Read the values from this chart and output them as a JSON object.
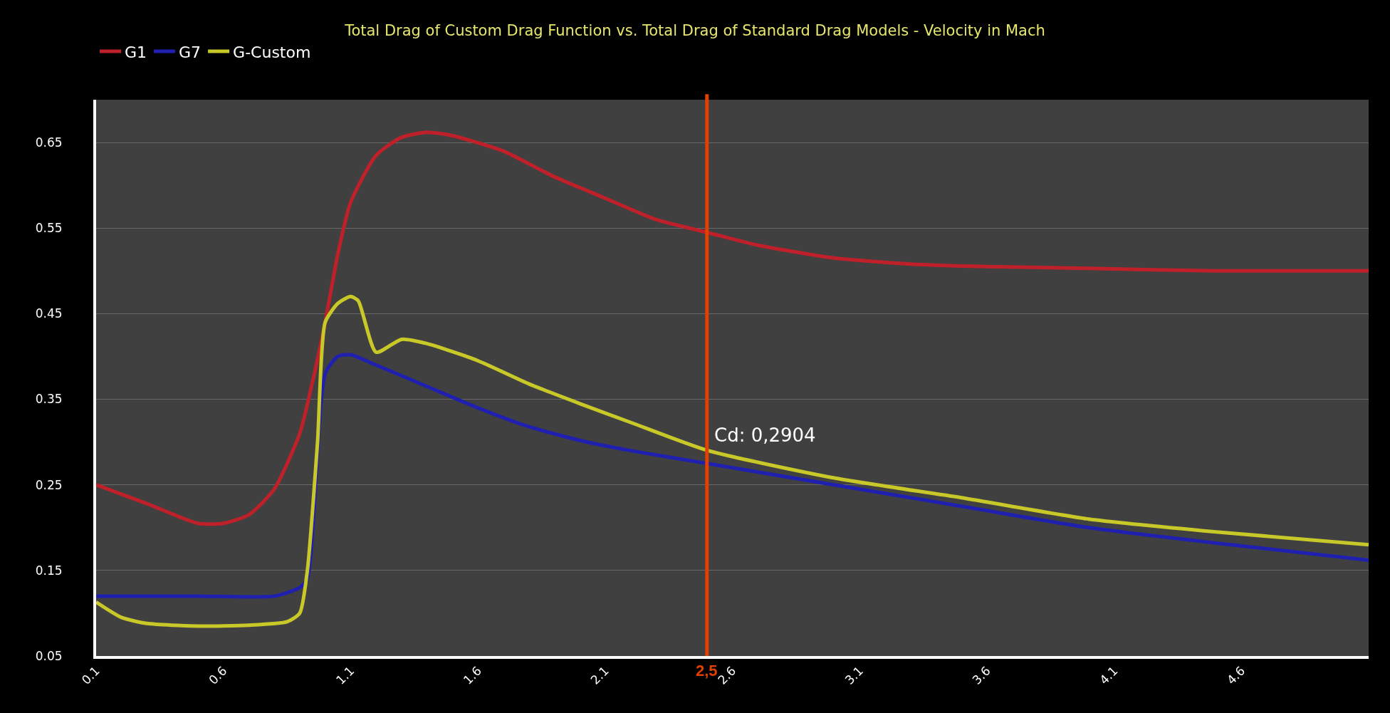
{
  "chart_data": {
    "type": "line",
    "title": "Total Drag of Custom Drag Function vs. Total Drag of Standard Drag Models - Velocity in Mach",
    "xlim": [
      0.1,
      5.1
    ],
    "xticks": [
      0.1,
      0.6,
      1.1,
      1.6,
      2.1,
      2.6,
      3.1,
      3.6,
      4.1,
      4.6
    ],
    "ylim": [
      0.05,
      0.7
    ],
    "yticks": [
      0.05,
      0.15,
      0.25,
      0.35,
      0.45,
      0.55,
      0.65
    ],
    "grid": "y",
    "legend": "top left",
    "marker": "none",
    "line_style": "solid",
    "series": [
      {
        "name": "G1",
        "color": "#c0202a",
        "x": [
          0.1,
          0.3,
          0.5,
          0.6,
          0.7,
          0.8,
          0.9,
          0.95,
          1.0,
          1.05,
          1.1,
          1.2,
          1.3,
          1.4,
          1.5,
          1.7,
          1.9,
          2.1,
          2.3,
          2.5,
          2.7,
          3.0,
          3.3,
          3.6,
          4.0,
          4.5,
          5.1
        ],
        "values": [
          0.25,
          0.228,
          0.205,
          0.205,
          0.215,
          0.245,
          0.31,
          0.37,
          0.44,
          0.52,
          0.58,
          0.635,
          0.656,
          0.662,
          0.658,
          0.64,
          0.61,
          0.585,
          0.56,
          0.545,
          0.53,
          0.515,
          0.508,
          0.505,
          0.503,
          0.5,
          0.5
        ]
      },
      {
        "name": "G7",
        "color": "#2020b0",
        "x": [
          0.1,
          0.5,
          0.8,
          0.9,
          0.93,
          1.0,
          1.05,
          1.1,
          1.2,
          1.4,
          1.6,
          1.8,
          2.0,
          2.2,
          2.5,
          3.0,
          3.5,
          4.0,
          4.5,
          5.1
        ],
        "values": [
          0.12,
          0.12,
          0.12,
          0.13,
          0.14,
          0.38,
          0.4,
          0.402,
          0.39,
          0.365,
          0.34,
          0.318,
          0.302,
          0.29,
          0.275,
          0.25,
          0.225,
          0.2,
          0.182,
          0.162
        ]
      },
      {
        "name": "G-Custom",
        "color": "#c8c828",
        "x": [
          0.1,
          0.2,
          0.3,
          0.5,
          0.7,
          0.85,
          0.9,
          0.93,
          0.97,
          1.0,
          1.05,
          1.1,
          1.13,
          1.2,
          1.3,
          1.4,
          1.6,
          1.8,
          2.0,
          2.2,
          2.5,
          3.0,
          3.5,
          4.0,
          4.5,
          5.1
        ],
        "values": [
          0.113,
          0.095,
          0.088,
          0.085,
          0.086,
          0.09,
          0.1,
          0.15,
          0.3,
          0.44,
          0.462,
          0.47,
          0.465,
          0.405,
          0.42,
          0.415,
          0.395,
          0.368,
          0.345,
          0.323,
          0.2904,
          0.258,
          0.235,
          0.21,
          0.195,
          0.18
        ]
      }
    ],
    "ref_lines": [
      {
        "axis": "x",
        "value": 2.5,
        "label": "2,5",
        "color": "#e04000"
      }
    ],
    "annotations": [
      {
        "text": "Cd: 0,2904",
        "x": 2.5,
        "y": 0.2904
      }
    ]
  }
}
